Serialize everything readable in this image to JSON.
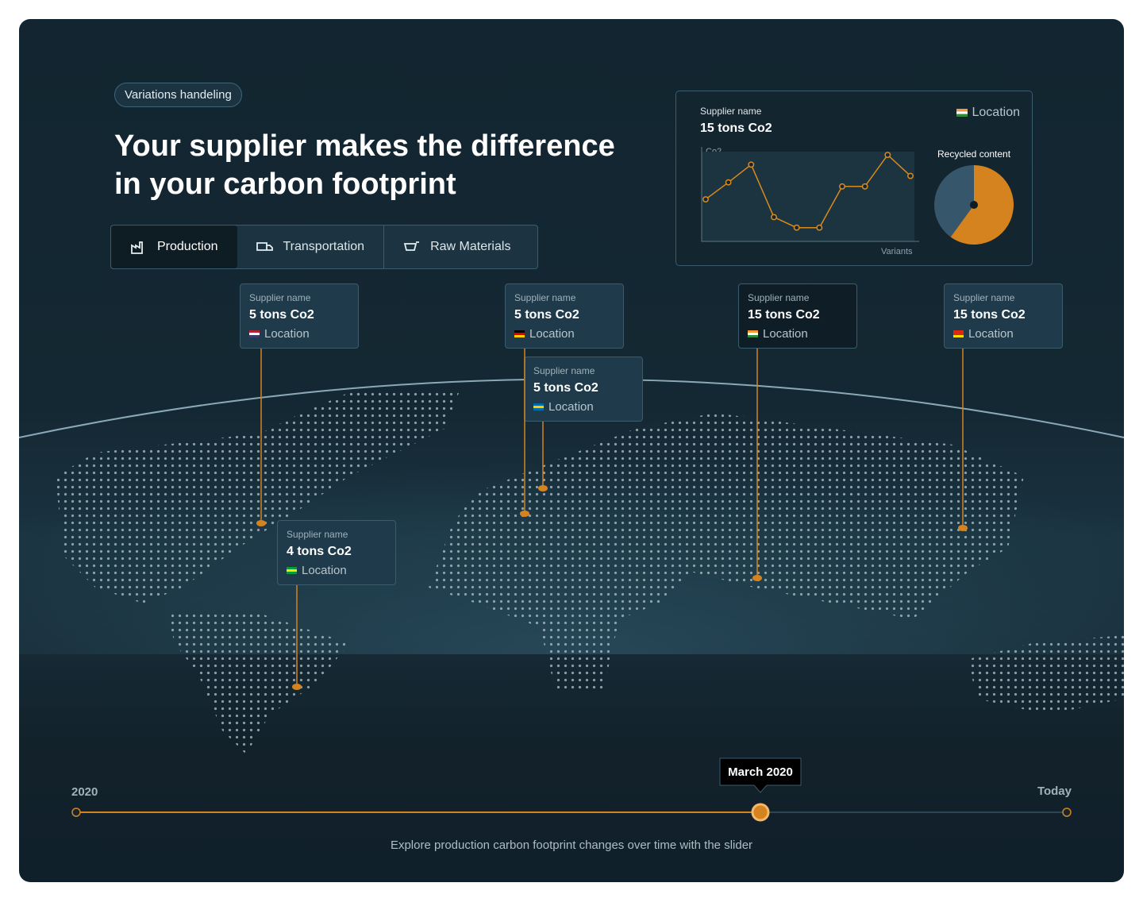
{
  "badge": "Variations handeling",
  "title": "Your supplier makes the difference in your carbon footprint",
  "tabs": [
    "Production",
    "Transportation",
    "Raw Materials"
  ],
  "summary": {
    "label": "Supplier name",
    "amount": "15 tons Co2",
    "location": "Location",
    "y_axis_label": "Co2",
    "x_axis_label": "Variants",
    "pie_title": "Recycled content",
    "line": {
      "type": "line",
      "categories": [
        null,
        null,
        null,
        null,
        null,
        null,
        null,
        null,
        null,
        null
      ],
      "values": [
        52,
        73,
        95,
        30,
        17,
        17,
        68,
        68,
        107,
        81
      ],
      "ylim": [
        0,
        111
      ],
      "color": "#d98a1f"
    },
    "pie": {
      "type": "pie",
      "values": [
        60,
        40
      ],
      "colors": [
        "#d4831f",
        "#36566b"
      ]
    }
  },
  "suppliers": [
    {
      "label": "Supplier name",
      "amount": "5 tons Co2",
      "location": "Location"
    },
    {
      "label": "Supplier name",
      "amount": "5 tons Co2",
      "location": "Location"
    },
    {
      "label": "Supplier name",
      "amount": "5 tons Co2",
      "location": "Location"
    },
    {
      "label": "Supplier name",
      "amount": "15 tons Co2",
      "location": "Location"
    },
    {
      "label": "Supplier name",
      "amount": "15 tons Co2",
      "location": "Location"
    },
    {
      "label": "Supplier name",
      "amount": "4 tons Co2",
      "location": "Location"
    }
  ],
  "timeline": {
    "start": "2020",
    "end": "Today",
    "current": "March 2020",
    "caption": "Explore production carbon footprint changes over time with the slider"
  }
}
